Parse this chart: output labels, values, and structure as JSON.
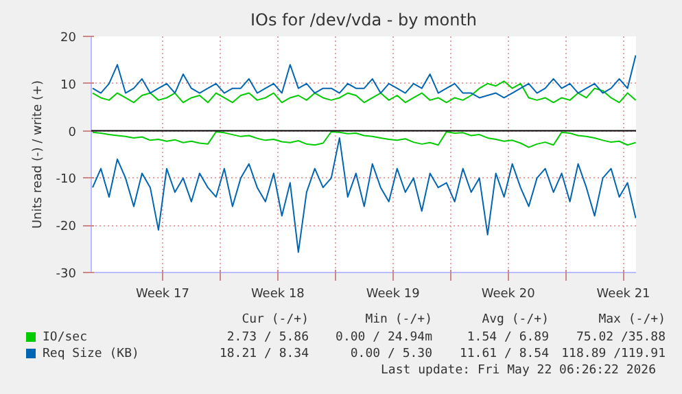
{
  "chart_data": {
    "type": "line",
    "title": "IOs for /dev/vda - by month",
    "ylabel": "Units read (-) / write (+)",
    "x": [
      "2026-04-19T06:00",
      "2026-04-19T18:00",
      "2026-04-20T06:00",
      "2026-04-20T18:00",
      "2026-04-21T06:00",
      "2026-04-21T18:00",
      "2026-04-22T06:00",
      "2026-04-22T18:00",
      "2026-04-23T06:00",
      "2026-04-23T18:00",
      "2026-04-24T06:00",
      "2026-04-24T18:00",
      "2026-04-25T06:00",
      "2026-04-25T18:00",
      "2026-04-26T06:00",
      "2026-04-26T18:00",
      "2026-04-27T06:00",
      "2026-04-27T18:00",
      "2026-04-28T06:00",
      "2026-04-28T18:00",
      "2026-04-29T06:00",
      "2026-04-29T18:00",
      "2026-04-30T06:00",
      "2026-04-30T18:00",
      "2026-05-01T06:00",
      "2026-05-01T18:00",
      "2026-05-02T06:00",
      "2026-05-02T18:00",
      "2026-05-03T06:00",
      "2026-05-03T18:00",
      "2026-05-04T06:00",
      "2026-05-04T18:00",
      "2026-05-05T06:00",
      "2026-05-05T18:00",
      "2026-05-06T06:00",
      "2026-05-06T18:00",
      "2026-05-07T06:00",
      "2026-05-07T18:00",
      "2026-05-08T06:00",
      "2026-05-08T18:00",
      "2026-05-09T06:00",
      "2026-05-09T18:00",
      "2026-05-10T06:00",
      "2026-05-10T18:00",
      "2026-05-11T06:00",
      "2026-05-11T18:00",
      "2026-05-12T06:00",
      "2026-05-12T18:00",
      "2026-05-13T06:00",
      "2026-05-13T18:00",
      "2026-05-14T06:00",
      "2026-05-14T18:00",
      "2026-05-15T06:00",
      "2026-05-15T18:00",
      "2026-05-16T06:00",
      "2026-05-16T18:00",
      "2026-05-17T06:00",
      "2026-05-17T18:00",
      "2026-05-18T06:00",
      "2026-05-18T18:00",
      "2026-05-19T06:00",
      "2026-05-19T18:00",
      "2026-05-20T06:00",
      "2026-05-20T18:00",
      "2026-05-21T06:00",
      "2026-05-21T18:00",
      "2026-05-22T06:00"
    ],
    "xlim": [
      "2026-04-19T04:00",
      "2026-05-22T06:26"
    ],
    "xticks": [
      {
        "value": "2026-04-23T12:00",
        "label": "Week 17"
      },
      {
        "value": "2026-04-27",
        "label": null
      },
      {
        "value": "2026-04-30T12:00",
        "label": "Week 18"
      },
      {
        "value": "2026-05-04",
        "label": null
      },
      {
        "value": "2026-05-07T12:00",
        "label": "Week 19"
      },
      {
        "value": "2026-05-11",
        "label": null
      },
      {
        "value": "2026-05-14T12:00",
        "label": "Week 20"
      },
      {
        "value": "2026-05-18",
        "label": null
      },
      {
        "value": "2026-05-21T12:00",
        "label": "Week 21"
      }
    ],
    "ylim": [
      -30,
      20
    ],
    "yticks": [
      -30,
      -20,
      -10,
      0,
      10,
      20
    ],
    "grid": true,
    "legend": "bottom",
    "ref_lines": [
      {
        "axis": "y",
        "value": 0,
        "color": "#000000"
      }
    ],
    "series": [
      {
        "name": "IO/sec",
        "color": "#00cc00",
        "values": [
          8,
          7,
          6.5,
          8,
          7,
          6,
          7.5,
          8,
          6.5,
          7,
          8,
          6,
          7,
          7.5,
          6,
          8,
          7,
          6,
          7.5,
          8,
          6.5,
          7,
          8,
          6,
          7,
          7.5,
          6.5,
          8,
          7,
          6.5,
          7,
          8,
          7.5,
          6,
          7,
          8,
          6.5,
          7.5,
          6,
          7,
          8,
          6.5,
          7,
          6,
          7,
          6.5,
          7.5,
          9,
          10,
          9.5,
          10.5,
          9,
          10,
          7,
          6.5,
          7,
          6,
          7,
          6.5,
          8,
          7,
          9,
          8.5,
          7,
          6,
          8,
          6.5
        ]
      },
      {
        "color": "#00cc00",
        "values": [
          -0.3,
          -0.5,
          -0.8,
          -1,
          -1.2,
          -1.5,
          -1.3,
          -2,
          -1.8,
          -2.2,
          -1.9,
          -2.5,
          -2.2,
          -2.6,
          -2.8,
          -0.2,
          -0.4,
          -0.8,
          -1.2,
          -1,
          -1.6,
          -2,
          -1.8,
          -2.3,
          -2.5,
          -2.1,
          -2.8,
          -3,
          -2.6,
          -0.2,
          -0.3,
          -0.6,
          -0.5,
          -1,
          -1.2,
          -1.5,
          -1.8,
          -2,
          -1.7,
          -2.4,
          -2.8,
          -2.5,
          -3,
          -0.2,
          -0.5,
          -0.4,
          -1,
          -0.8,
          -1.5,
          -1.8,
          -2.2,
          -2,
          -2.6,
          -3.5,
          -2.8,
          -2.4,
          -3,
          -0.3,
          -0.5,
          -1,
          -1.2,
          -1.5,
          -2,
          -2.4,
          -2.2,
          -3,
          -2.5
        ]
      },
      {
        "name": "Req Size (KB)",
        "color": "#0066b3",
        "values": [
          9,
          8,
          10,
          14,
          8,
          9,
          11,
          8,
          9,
          10,
          8,
          12,
          9,
          8,
          9,
          10,
          8,
          9,
          9,
          11,
          8,
          9,
          10,
          8,
          14,
          9,
          10,
          8,
          9,
          9,
          8,
          10,
          9,
          9,
          11,
          8,
          10,
          9,
          8,
          10,
          9,
          12,
          8,
          9,
          10,
          8,
          8,
          7,
          7.5,
          8,
          7,
          8,
          9,
          10,
          8,
          9,
          11,
          9,
          10,
          8,
          9,
          10,
          8,
          9,
          11,
          9,
          16
        ]
      },
      {
        "color": "#0066b3",
        "values": [
          -12,
          -8,
          -14,
          -6,
          -10,
          -16,
          -9,
          -12,
          -21,
          -8,
          -13,
          -10,
          -15,
          -9,
          -12,
          -14,
          -8,
          -16,
          -10,
          -7,
          -12,
          -15,
          -9,
          -18,
          -11,
          -25.7,
          -13,
          -8,
          -12,
          -10,
          -1.5,
          -14,
          -9,
          -16,
          -7,
          -12,
          -15,
          -8,
          -13,
          -10,
          -17,
          -9,
          -12,
          -11,
          -15,
          -8,
          -13,
          -10,
          -22,
          -9,
          -14,
          -7,
          -12,
          -16,
          -10,
          -8,
          -13,
          -9,
          -15,
          -7,
          -12,
          -18,
          -10,
          -8,
          -14,
          -11,
          -18.5
        ]
      }
    ],
    "annotations": [
      "Cur (-/+)",
      "Min (-/+)",
      "Avg (-/+)",
      "Max (-/+)",
      "2.73 / 5.86",
      "0.00 / 24.94m",
      "1.54 / 6.89",
      "75.02 /35.88",
      "18.21 / 8.34",
      "0.00 / 5.30",
      "11.61 / 8.54",
      "118.89 /119.91",
      "Last update: Fri May 22 06:26:22 2026"
    ]
  }
}
